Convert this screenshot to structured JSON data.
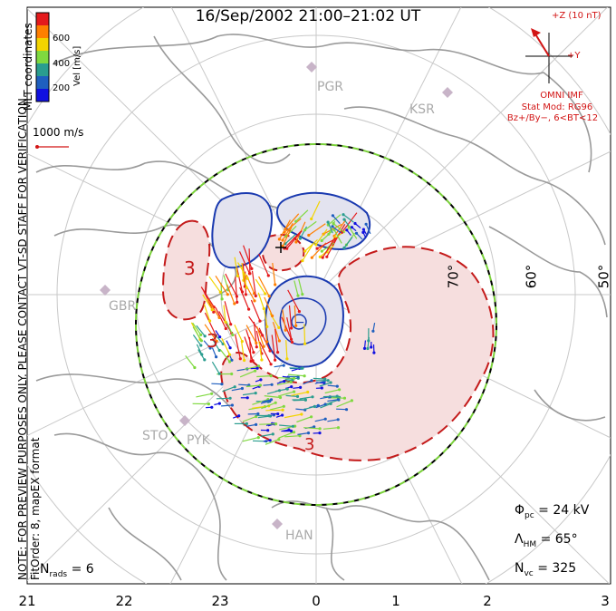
{
  "title": "16/Sep/2002 21:00–21:02 UT",
  "side_text": {
    "preview_note": "NOTE: FOR PREVIEW PURPOSES ONLY. PLEASE CONTACT VT-SD STAFF FOR VERIFICATION.",
    "fit_order": "FitOrder: 8, mapEX format",
    "coords": "MLT coordinates"
  },
  "colorbar": {
    "label": "Vel [m/s]",
    "ticks": [
      "600",
      "400",
      "200"
    ],
    "colors": [
      "#e41a1c",
      "#ff7f00",
      "#f2d400",
      "#7fd93f",
      "#2a9d8f",
      "#1f5fbf",
      "#1010e0"
    ]
  },
  "velocity_scale": {
    "label": "1000 m/s"
  },
  "imf": {
    "bz_label": "+Z (10 nT)",
    "by_label": "+Y",
    "source": "OMNI IMF",
    "model": "Stat Mod: RG96",
    "condition": "Bz+/By−, 6<BT<12",
    "color": "#d21414"
  },
  "sites": [
    "PGR",
    "KSR",
    "GBR",
    "STO",
    "PYK",
    "HAN"
  ],
  "lat_labels": [
    "70°",
    "60°",
    "50°"
  ],
  "mlt_labels": [
    "21",
    "22",
    "23",
    "0",
    "1",
    "2",
    "3"
  ],
  "contour_labels": [
    "3",
    "3",
    "3"
  ],
  "stats": {
    "phi_pc": {
      "symbol": "Φ",
      "sub": "pc",
      "value": "= 24 kV"
    },
    "lambda_hm": {
      "symbol": "Λ",
      "sub": "HM",
      "value": "= 65°"
    },
    "n_vc": {
      "symbol": "N",
      "sub": "vc",
      "value": "= 325"
    },
    "n_rads": {
      "symbol": "N",
      "sub": "rads",
      "value": "= 6"
    }
  },
  "colors": {
    "negative_cell": "#1a3ab0",
    "positive_cell": "#c41a1a",
    "land": "#9a9a9a",
    "grid": "#c8c8c8",
    "boundary": "#7ad13a"
  }
}
